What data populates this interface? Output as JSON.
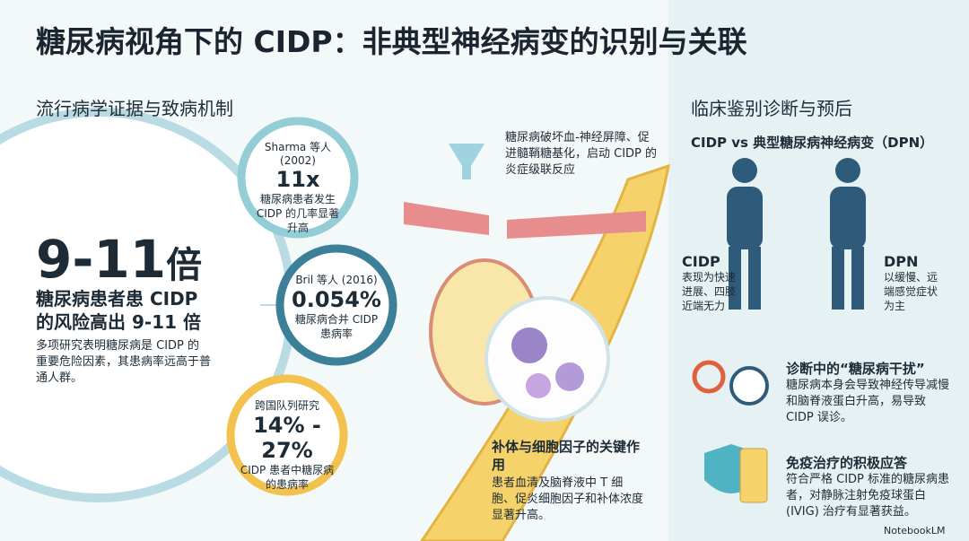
{
  "header": {
    "title": "糖尿病视角下的 CIDP：非典型神经病变的识别与关联"
  },
  "left": {
    "heading": "流行病学证据与致病机制",
    "highlight": {
      "number": "9-11",
      "unit": "倍",
      "subtitle_lines": [
        "糖尿病患者患 CIDP",
        "的风险高出 9-11 倍"
      ],
      "description": "多项研究表明糖尿病是 CIDP 的重要危险因素，其患病率远高于普通人群。"
    },
    "stats": [
      {
        "source": "Sharma 等人 (2002)",
        "value": "11x",
        "label": "糖尿病患者发生 CIDP 的几率显著升高"
      },
      {
        "source": "Bril 等人 (2016)",
        "value": "0.054%",
        "label": "糖尿病合并 CIDP 患病率"
      },
      {
        "source": "跨国队列研究",
        "value": "14% - 27%",
        "label": "CIDP 患者中糖尿病的患病率"
      }
    ]
  },
  "mechanism": {
    "barrier": "糖尿病破坏血-神经屏障、促进髓鞘糖基化，启动 CIDP 的炎症级联反应",
    "role_title": "补体与细胞因子的关键作用",
    "role_text": "患者血清及脑脊液中 T 细胞、促炎细胞因子和补体浓度显著升高。"
  },
  "right": {
    "heading": "临床鉴别诊断与预后",
    "compare_title": "CIDP vs 典型糖尿病神经病变（DPN）",
    "cidp": {
      "name": "CIDP",
      "text": "表现为快速进展、四肢近端无力"
    },
    "dpn": {
      "name": "DPN",
      "text": "以缓慢、远端感觉症状为主"
    },
    "items": [
      {
        "title": "诊断中的“糖尿病干扰”",
        "text": "糖尿病本身会导致神经传导减慢和脑脊液蛋白升高，易导致 CIDP 误诊。"
      },
      {
        "title": "免疫治疗的积极应答",
        "text": "符合严格 CIDP 标准的糖尿病患者，对静脉注射免疫球蛋白 (IVIG) 治疗有显著获益。"
      }
    ]
  },
  "footer": {
    "brand": "NotebookLM"
  }
}
